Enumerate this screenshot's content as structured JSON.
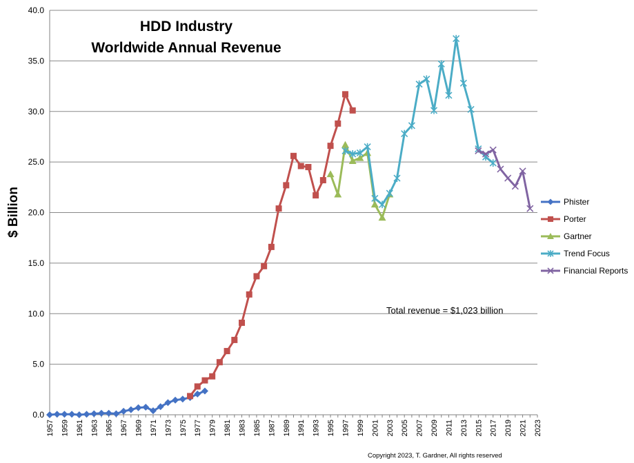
{
  "chart_data": {
    "type": "line",
    "title": [
      "HDD Industry",
      "Worldwide Annual Revenue"
    ],
    "ylabel": "$ Billion",
    "xlabel": "",
    "ylim": [
      0,
      40
    ],
    "xlim": [
      1957,
      2023
    ],
    "y_ticks": [
      "0.0",
      "5.0",
      "10.0",
      "15.0",
      "20.0",
      "25.0",
      "30.0",
      "35.0",
      "40.0"
    ],
    "x_ticks": [
      "1957",
      "1959",
      "1961",
      "1963",
      "1965",
      "1967",
      "1969",
      "1971",
      "1973",
      "1975",
      "1977",
      "1979",
      "1981",
      "1983",
      "1985",
      "1987",
      "1989",
      "1991",
      "1993",
      "1995",
      "1997",
      "1999",
      "2001",
      "2003",
      "2005",
      "2007",
      "2009",
      "2011",
      "2013",
      "2015",
      "2017",
      "2019",
      "2021",
      "2023"
    ],
    "grid": "horizontal",
    "legend_position": "right",
    "series": [
      {
        "name": "Phister",
        "color": "#4472c4",
        "marker": "diamond",
        "x": [
          1957,
          1958,
          1959,
          1960,
          1961,
          1962,
          1963,
          1964,
          1965,
          1966,
          1967,
          1968,
          1969,
          1970,
          1971,
          1972,
          1973,
          1974,
          1975,
          1976,
          1977,
          1978
        ],
        "y": [
          0.0,
          0.05,
          0.05,
          0.05,
          0.0,
          0.05,
          0.1,
          0.15,
          0.15,
          0.1,
          0.35,
          0.5,
          0.7,
          0.75,
          0.4,
          0.8,
          1.2,
          1.45,
          1.55,
          1.7,
          2.05,
          2.35
        ]
      },
      {
        "name": "Porter",
        "color": "#c0504d",
        "marker": "square",
        "x": [
          1976,
          1977,
          1978,
          1979,
          1980,
          1981,
          1982,
          1983,
          1984,
          1985,
          1986,
          1987,
          1988,
          1989,
          1990,
          1991,
          1992,
          1993,
          1994,
          1995,
          1996,
          1997,
          1998
        ],
        "y": [
          1.85,
          2.8,
          3.4,
          3.8,
          5.2,
          6.3,
          7.4,
          9.1,
          11.9,
          13.7,
          14.7,
          16.6,
          20.4,
          22.7,
          25.6,
          24.6,
          24.5,
          21.7,
          23.2,
          26.6,
          28.8,
          31.7,
          30.1
        ]
      },
      {
        "name": "Gartner",
        "color": "#9bbb59",
        "marker": "triangle",
        "x": [
          1995,
          1996,
          1997,
          1998,
          1999,
          2000,
          2001,
          2002,
          2003
        ],
        "y": [
          23.8,
          21.8,
          26.7,
          25.1,
          25.4,
          25.9,
          20.8,
          19.5,
          21.8
        ]
      },
      {
        "name": "Trend Focus",
        "color": "#4bacc6",
        "marker": "star",
        "x": [
          1997,
          1998,
          1999,
          2000,
          2001,
          2002,
          2003,
          2004,
          2005,
          2006,
          2007,
          2008,
          2009,
          2010,
          2011,
          2012,
          2013,
          2014,
          2015,
          2016,
          2017
        ],
        "y": [
          26.1,
          25.8,
          25.9,
          26.5,
          21.4,
          20.8,
          21.9,
          23.4,
          27.8,
          28.6,
          32.7,
          33.2,
          30.1,
          34.7,
          31.6,
          37.2,
          32.8,
          30.2,
          26.3,
          25.5,
          24.9
        ]
      },
      {
        "name": "Financial Reports",
        "color": "#8064a2",
        "marker": "x",
        "x": [
          2015,
          2016,
          2017,
          2018,
          2019,
          2020,
          2021,
          2022
        ],
        "y": [
          26.1,
          25.8,
          26.2,
          24.3,
          23.4,
          22.6,
          24.1,
          20.4
        ]
      }
    ],
    "annotations": {
      "total_revenue": "Total revenue =  $1,023 billion",
      "copyright": "Copyright 2023, T. Gardner, All rights reserved"
    }
  }
}
